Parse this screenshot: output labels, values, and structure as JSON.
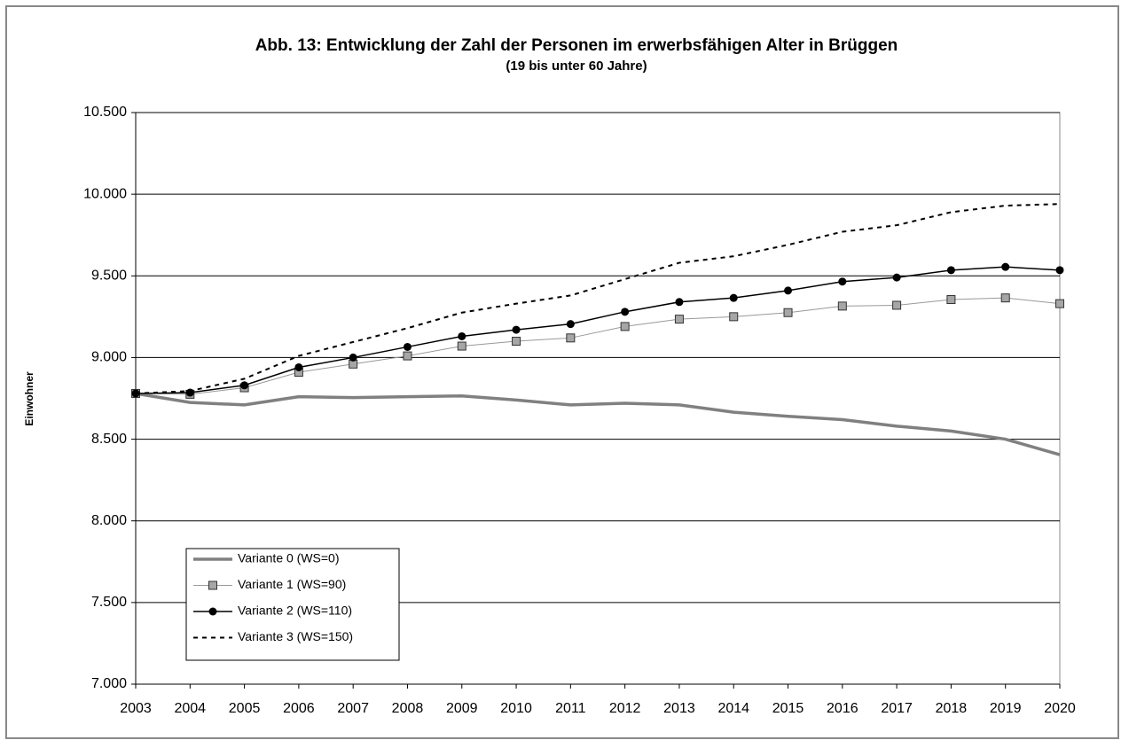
{
  "chart_data": {
    "type": "line",
    "title": "Abb. 13: Entwicklung der Zahl der Personen im erwerbsfähigen Alter in Brüggen",
    "subtitle": "(19 bis unter 60 Jahre)",
    "y_label": "Einwohner",
    "x": [
      2003,
      2004,
      2005,
      2006,
      2007,
      2008,
      2009,
      2010,
      2011,
      2012,
      2013,
      2014,
      2015,
      2016,
      2017,
      2018,
      2019,
      2020
    ],
    "xlim": [
      2003,
      2020
    ],
    "xticks": [
      2003,
      2004,
      2005,
      2006,
      2007,
      2008,
      2009,
      2010,
      2011,
      2012,
      2013,
      2014,
      2015,
      2016,
      2017,
      2018,
      2019,
      2020
    ],
    "ylim": [
      7000,
      10500
    ],
    "yticks": [
      {
        "value": 7000,
        "label": "7.000"
      },
      {
        "value": 7500,
        "label": "7.500"
      },
      {
        "value": 8000,
        "label": "8.000"
      },
      {
        "value": 8500,
        "label": "8.500"
      },
      {
        "value": 9000,
        "label": "9.000"
      },
      {
        "value": 9500,
        "label": "9.500"
      },
      {
        "value": 10000,
        "label": "10.000"
      },
      {
        "value": 10500,
        "label": "10.500"
      }
    ],
    "grid": true,
    "legend": "lower left",
    "series": [
      {
        "name": "Variante 0 (WS=0)",
        "color": "#808080",
        "marker": null,
        "dashed": false,
        "values": [
          8780,
          8725,
          8710,
          8760,
          8755,
          8760,
          8765,
          8740,
          8710,
          8720,
          8710,
          8665,
          8640,
          8620,
          8580,
          8550,
          8500,
          8405
        ]
      },
      {
        "name": "Variante 1 (WS=90)",
        "color": "#999999",
        "marker": "square",
        "dashed": false,
        "values": [
          8780,
          8775,
          8815,
          8910,
          8960,
          9010,
          9070,
          9100,
          9120,
          9190,
          9235,
          9250,
          9275,
          9315,
          9320,
          9355,
          9365,
          9330
        ]
      },
      {
        "name": "Variante 2 (WS=110)",
        "color": "#000000",
        "marker": "circle",
        "dashed": false,
        "values": [
          8780,
          8785,
          8830,
          8940,
          9000,
          9065,
          9130,
          9170,
          9205,
          9280,
          9340,
          9365,
          9410,
          9465,
          9490,
          9535,
          9555,
          9535
        ]
      },
      {
        "name": "Variante 3 (WS=150)",
        "color": "#000000",
        "marker": null,
        "dashed": true,
        "values": [
          8780,
          8795,
          8870,
          9010,
          9095,
          9180,
          9275,
          9330,
          9380,
          9480,
          9580,
          9620,
          9690,
          9770,
          9810,
          9890,
          9930,
          9940
        ]
      }
    ]
  }
}
